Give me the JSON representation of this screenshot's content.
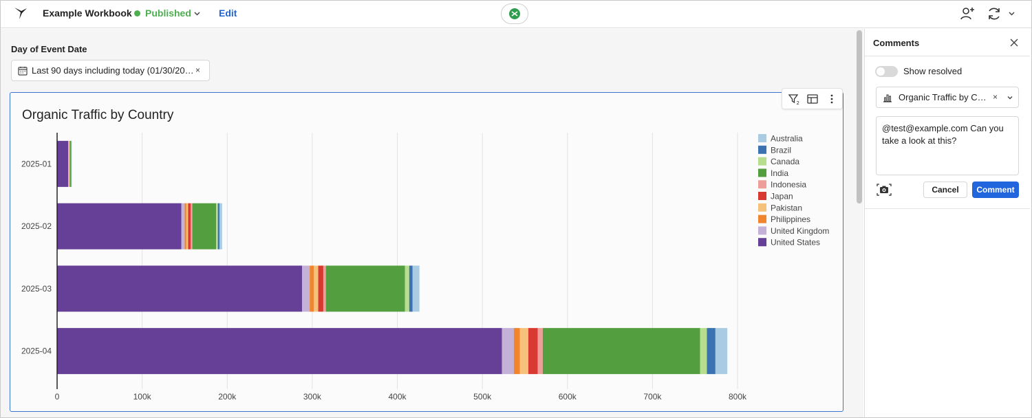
{
  "header": {
    "workbook_title": "Example Workbook",
    "status_label": "Published",
    "edit_label": "Edit",
    "status_color": "#4caf50",
    "edit_color": "#2164d6"
  },
  "filter": {
    "label": "Day of Event Date",
    "value": "Last 90 days including today (01/30/20…",
    "clear_icon": "×"
  },
  "chart_data": {
    "type": "bar",
    "orientation": "horizontal",
    "stacked": true,
    "title": "Organic Traffic by Country",
    "xlabel": "",
    "ylabel": "",
    "xlim": [
      0,
      800000
    ],
    "x_ticks": [
      0,
      100000,
      200000,
      300000,
      400000,
      500000,
      600000,
      700000,
      800000
    ],
    "x_tick_labels": [
      "0",
      "100k",
      "200k",
      "300k",
      "400k",
      "500k",
      "600k",
      "700k",
      "800k"
    ],
    "grid": "vertical",
    "legend_position": "right",
    "categories": [
      "2025-01",
      "2025-02",
      "2025-03",
      "2025-04"
    ],
    "series": [
      {
        "name": "United States",
        "color": "#663f97",
        "values": [
          13000,
          146000,
          288000,
          523000
        ]
      },
      {
        "name": "United Kingdom",
        "color": "#c3b1d8",
        "values": [
          1000,
          4000,
          9000,
          14000
        ]
      },
      {
        "name": "Philippines",
        "color": "#f0852e",
        "values": [
          300,
          2000,
          5000,
          7000
        ]
      },
      {
        "name": "Pakistan",
        "color": "#f6c27b",
        "values": [
          300,
          2000,
          5000,
          10000
        ]
      },
      {
        "name": "Japan",
        "color": "#d83a32",
        "values": [
          300,
          3000,
          6000,
          11000
        ]
      },
      {
        "name": "Indonesia",
        "color": "#ee9e99",
        "values": [
          300,
          2000,
          3000,
          6000
        ]
      },
      {
        "name": "India",
        "color": "#539f3f",
        "values": [
          1200,
          28000,
          93000,
          185000
        ]
      },
      {
        "name": "Canada",
        "color": "#b7de8e",
        "values": [
          300,
          2000,
          5000,
          8000
        ]
      },
      {
        "name": "Brazil",
        "color": "#3a73b0",
        "values": [
          300,
          2000,
          4000,
          10000
        ]
      },
      {
        "name": "Australia",
        "color": "#a9cbe4",
        "values": [
          300,
          3000,
          8000,
          14000
        ]
      }
    ],
    "legend_order": [
      "Australia",
      "Brazil",
      "Canada",
      "India",
      "Indonesia",
      "Japan",
      "Pakistan",
      "Philippines",
      "United Kingdom",
      "United States"
    ]
  },
  "comments": {
    "title": "Comments",
    "show_resolved_label": "Show resolved",
    "show_resolved_on": false,
    "element_select_value": "Organic Traffic by C…",
    "clear_icon": "×",
    "draft_text": "@test@example.com Can you take a look at this?",
    "cancel_label": "Cancel",
    "submit_label": "Comment",
    "submit_color": "#2266dd"
  }
}
